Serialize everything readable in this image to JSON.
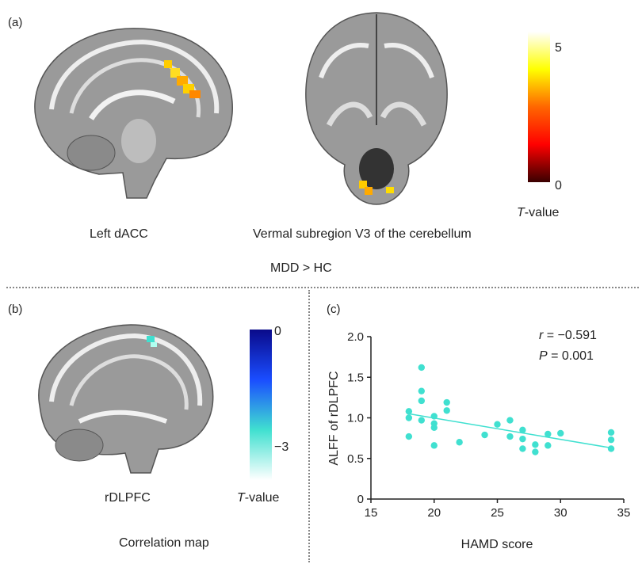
{
  "panel_a": {
    "letter": "(a)",
    "left_label": "Left dACC",
    "right_label": "Vermal subregion V3 of the cerebellum",
    "caption": "MDD > HC",
    "colorbar": {
      "max_label": "5",
      "min_label": "0",
      "title_italic": "T",
      "title_rest": "-value",
      "colors": [
        "#ffffff",
        "#ffff00",
        "#ff6600",
        "#ff0000",
        "#3a0000"
      ]
    }
  },
  "panel_b": {
    "letter": "(b)",
    "brain_label": "rDLPFC",
    "caption": "Correlation map",
    "colorbar": {
      "top_label": "0",
      "low_label": "−3",
      "title_italic": "T",
      "title_rest": "-value",
      "colors": [
        "#0a0a8a",
        "#1a4dff",
        "#40e0d0",
        "#ffffff"
      ]
    }
  },
  "panel_c": {
    "letter": "(c)",
    "stat_r_italic": "r",
    "stat_r_rest": " = −0.591",
    "stat_p_italic": "P",
    "stat_p_rest": " = 0.001"
  },
  "chart_data": {
    "type": "scatter",
    "xlabel": "HAMD score",
    "ylabel": "ALFF of rDLPFC",
    "xlim": [
      15,
      35
    ],
    "ylim": [
      0,
      2.0
    ],
    "xticks": [
      "15",
      "20",
      "25",
      "30",
      "35"
    ],
    "yticks": [
      "0",
      "0.5",
      "1.0",
      "1.5",
      "2.0"
    ],
    "point_color": "#40e0d0",
    "points": [
      [
        18,
        1.08
      ],
      [
        18,
        1.0
      ],
      [
        18,
        0.77
      ],
      [
        19,
        1.62
      ],
      [
        19,
        1.33
      ],
      [
        19,
        1.21
      ],
      [
        19,
        0.97
      ],
      [
        20,
        1.02
      ],
      [
        20,
        0.93
      ],
      [
        20,
        0.88
      ],
      [
        20,
        0.66
      ],
      [
        21,
        1.19
      ],
      [
        21,
        1.09
      ],
      [
        22,
        0.7
      ],
      [
        24,
        0.79
      ],
      [
        25,
        0.92
      ],
      [
        26,
        0.97
      ],
      [
        26,
        0.77
      ],
      [
        27,
        0.85
      ],
      [
        27,
        0.74
      ],
      [
        27,
        0.62
      ],
      [
        28,
        0.67
      ],
      [
        28,
        0.58
      ],
      [
        29,
        0.8
      ],
      [
        29,
        0.66
      ],
      [
        30,
        0.81
      ],
      [
        34,
        0.82
      ],
      [
        34,
        0.73
      ],
      [
        34,
        0.62
      ]
    ],
    "trend_line": {
      "x": [
        18,
        34
      ],
      "y": [
        1.05,
        0.63
      ]
    }
  }
}
